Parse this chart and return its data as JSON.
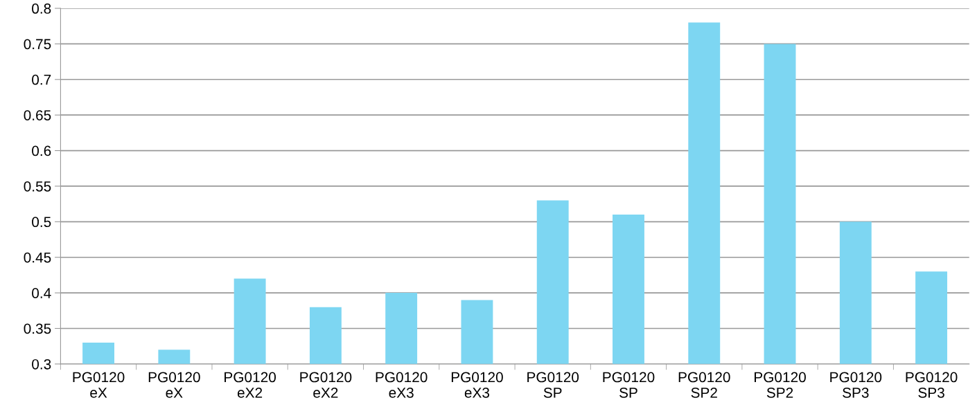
{
  "chart_data": {
    "type": "bar",
    "categories": [
      "PG0120\neX",
      "PG0120\neX",
      "PG0120\neX2",
      "PG0120\neX2",
      "PG0120\neX3",
      "PG0120\neX3",
      "PG0120\nSP",
      "PG0120\nSP",
      "PG0120\nSP2",
      "PG0120\nSP2",
      "PG0120\nSP3",
      "PG0120\nSP3"
    ],
    "values": [
      0.33,
      0.32,
      0.42,
      0.38,
      0.4,
      0.39,
      0.53,
      0.51,
      0.78,
      0.75,
      0.5,
      0.43
    ],
    "color": "#7dd6f2",
    "ylim": [
      0.3,
      0.8
    ],
    "yticks": [
      {
        "value": 0.3,
        "label": "0.3"
      },
      {
        "value": 0.35,
        "label": "0.35"
      },
      {
        "value": 0.4,
        "label": "0.4"
      },
      {
        "value": 0.45,
        "label": "0.45"
      },
      {
        "value": 0.5,
        "label": "0.5"
      },
      {
        "value": 0.55,
        "label": "0.55"
      },
      {
        "value": 0.6,
        "label": "0.6"
      },
      {
        "value": 0.65,
        "label": "0.65"
      },
      {
        "value": 0.7,
        "label": "0.7"
      },
      {
        "value": 0.75,
        "label": "0.75"
      },
      {
        "value": 0.8,
        "label": "0.8"
      }
    ],
    "grid": "y"
  }
}
